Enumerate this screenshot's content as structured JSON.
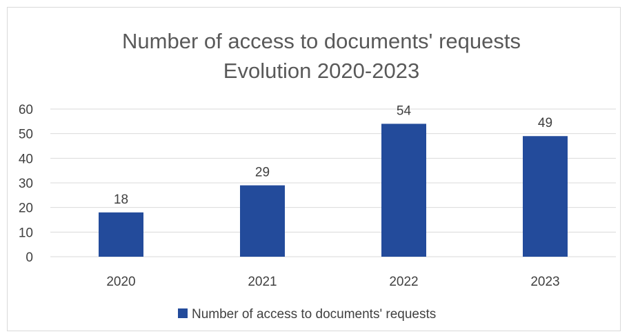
{
  "chart_data": {
    "type": "bar",
    "title": [
      "Number of access to documents' requests",
      "Evolution 2020-2023"
    ],
    "categories": [
      "2020",
      "2021",
      "2022",
      "2023"
    ],
    "series": [
      {
        "name": "Number of access to documents' requests",
        "values": [
          18,
          29,
          54,
          49
        ],
        "color": "#234B9B"
      }
    ],
    "ylim": [
      0,
      60
    ],
    "yticks": [
      0,
      10,
      20,
      30,
      40,
      50,
      60
    ],
    "grid": true,
    "gridline_color": "#d9d9d9",
    "data_labels": true,
    "legend_position": "bottom"
  }
}
